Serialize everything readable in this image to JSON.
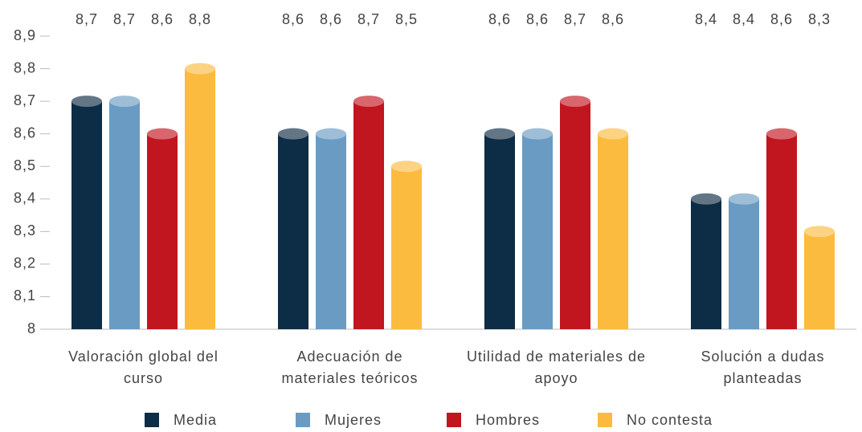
{
  "chart_data": {
    "type": "bar",
    "categories": [
      "Valoración global del curso",
      "Adecuación de materiales teóricos",
      "Utilidad de materiales de apoyo",
      "Solución a dudas planteadas"
    ],
    "series": [
      {
        "name": "Media",
        "color": "#0d2c45",
        "values": [
          8.7,
          8.6,
          8.6,
          8.4
        ],
        "value_labels": [
          "8,7",
          "8,6",
          "8,6",
          "8,4"
        ]
      },
      {
        "name": "Mujeres",
        "color": "#6a9bc3",
        "values": [
          8.7,
          8.6,
          8.6,
          8.4
        ],
        "value_labels": [
          "8,7",
          "8,6",
          "8,6",
          "8,4"
        ]
      },
      {
        "name": "Hombres",
        "color": "#c1151f",
        "values": [
          8.6,
          8.7,
          8.7,
          8.6
        ],
        "value_labels": [
          "8,6",
          "8,7",
          "8,7",
          "8,6"
        ]
      },
      {
        "name": "No contesta",
        "color": "#fbbb3f",
        "values": [
          8.8,
          8.5,
          8.6,
          8.3
        ],
        "value_labels": [
          "8,8",
          "8,5",
          "8,6",
          "8,3"
        ]
      }
    ],
    "ylim": [
      8,
      8.9
    ],
    "yticks": [
      8,
      {
        "value": 8.1,
        "label": "8,1"
      },
      {
        "value": 8.2,
        "label": "8,2"
      },
      {
        "value": 8.3,
        "label": "8,3"
      },
      {
        "value": 8.4,
        "label": "8,4"
      },
      {
        "value": 8.5,
        "label": "8,5"
      },
      {
        "value": 8.6,
        "label": "8,6"
      },
      {
        "value": 8.7,
        "label": "8,7"
      },
      {
        "value": 8.8,
        "label": "8,8"
      },
      {
        "value": 8.9,
        "label": "8,9"
      }
    ],
    "legend": "bottom"
  }
}
